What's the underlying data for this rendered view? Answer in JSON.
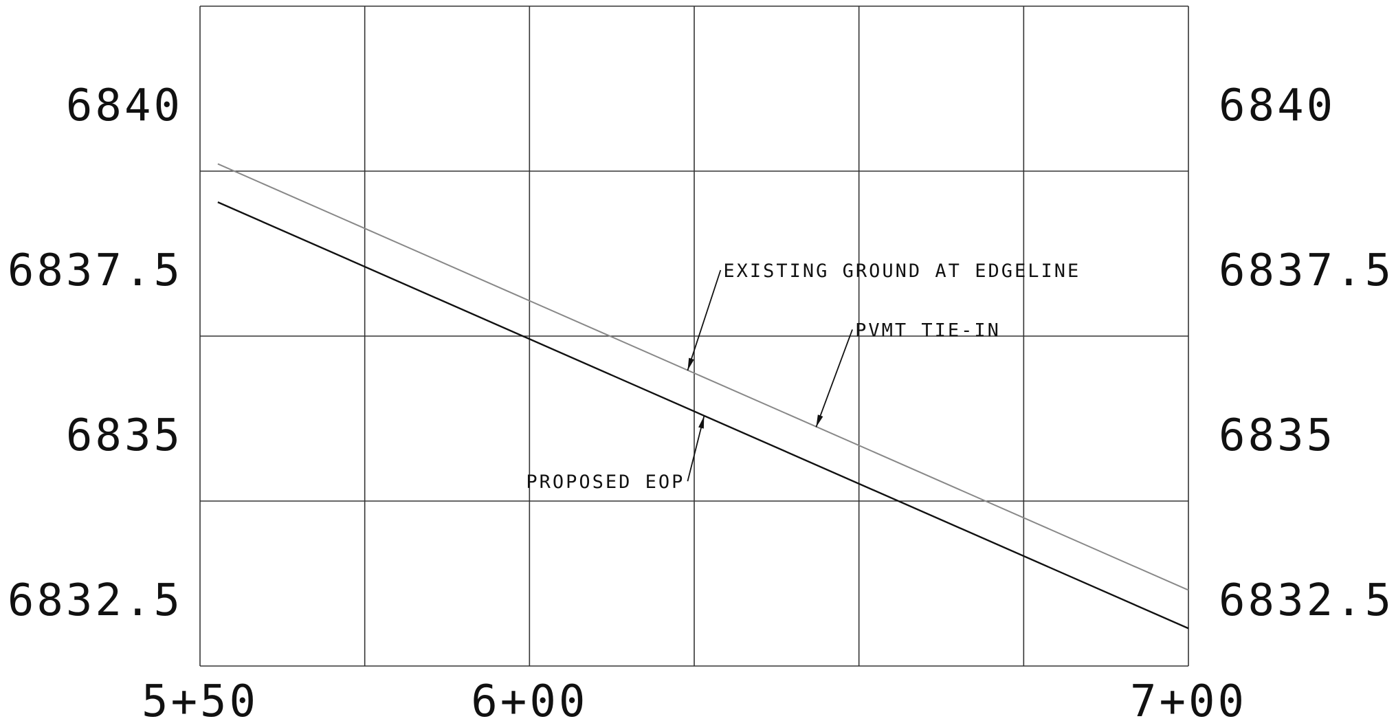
{
  "chart_data": {
    "type": "line",
    "title": "",
    "xlabel": "",
    "ylabel": "",
    "grid": true,
    "xlim": [
      550,
      700
    ],
    "ylim": [
      6831.5,
      6841.5
    ],
    "x_gridlines": [
      550,
      575,
      600,
      625,
      650,
      675,
      700
    ],
    "y_gridlines": [
      6831.5,
      6834,
      6836.5,
      6839,
      6841.5
    ],
    "x_ticks": [
      {
        "value": 550,
        "label": "5+50"
      },
      {
        "value": 600,
        "label": "6+00"
      },
      {
        "value": 700,
        "label": "7+00"
      }
    ],
    "y_ticks": [
      {
        "value": 6840,
        "label": "6840"
      },
      {
        "value": 6837.5,
        "label": "6837.5"
      },
      {
        "value": 6835,
        "label": "6835"
      },
      {
        "value": 6832.5,
        "label": "6832.5"
      }
    ],
    "series": [
      {
        "name": "EXISTING GROUND AT EDGELINE",
        "color": "#888888",
        "points": [
          [
            552.7,
            6839.11
          ],
          [
            700,
            6832.65
          ]
        ]
      },
      {
        "name": "PROPOSED EOP",
        "color": "#111111",
        "points": [
          [
            552.7,
            6838.53
          ],
          [
            700,
            6832.07
          ]
        ]
      }
    ],
    "annotations": [
      {
        "text": "EXISTING GROUND AT EDGELINE",
        "anchor": [
          624.0,
          6835.98
        ],
        "label_at": [
          629.0,
          6837.5
        ],
        "align": "start"
      },
      {
        "text": "PVMT TIE-IN",
        "anchor": [
          643.5,
          6835.12
        ],
        "label_at": [
          649.0,
          6836.6
        ],
        "align": "start"
      },
      {
        "text": "PROPOSED EOP",
        "anchor": [
          626.5,
          6835.29
        ],
        "label_at": [
          624.0,
          6834.3
        ],
        "align": "end"
      }
    ]
  }
}
